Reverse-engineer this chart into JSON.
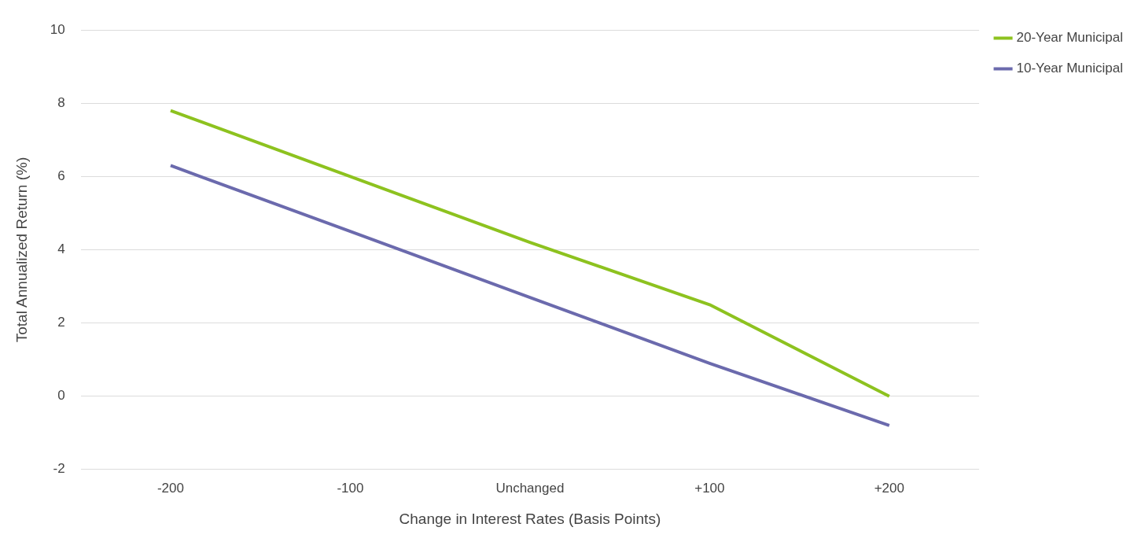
{
  "chart_data": {
    "type": "line",
    "xlabel": "Change in Interest Rates (Basis Points)",
    "ylabel": "Total Annualized Return (%)",
    "categories": [
      "-200",
      "-100",
      "Unchanged",
      "+100",
      "+200"
    ],
    "series": [
      {
        "name": "20-Year Municipal",
        "color": "#8dc21f",
        "values": [
          7.8,
          6.0,
          4.2,
          2.5,
          0.0
        ]
      },
      {
        "name": "10-Year Municipal",
        "color": "#6b6aad",
        "values": [
          6.3,
          4.5,
          2.7,
          0.9,
          -0.8
        ]
      }
    ],
    "ylim": [
      -2,
      10
    ],
    "yticks": [
      -2,
      0,
      2,
      4,
      6,
      8,
      10
    ],
    "grid": "y",
    "legend": "top right",
    "marker": "none",
    "line_style": "solid"
  }
}
